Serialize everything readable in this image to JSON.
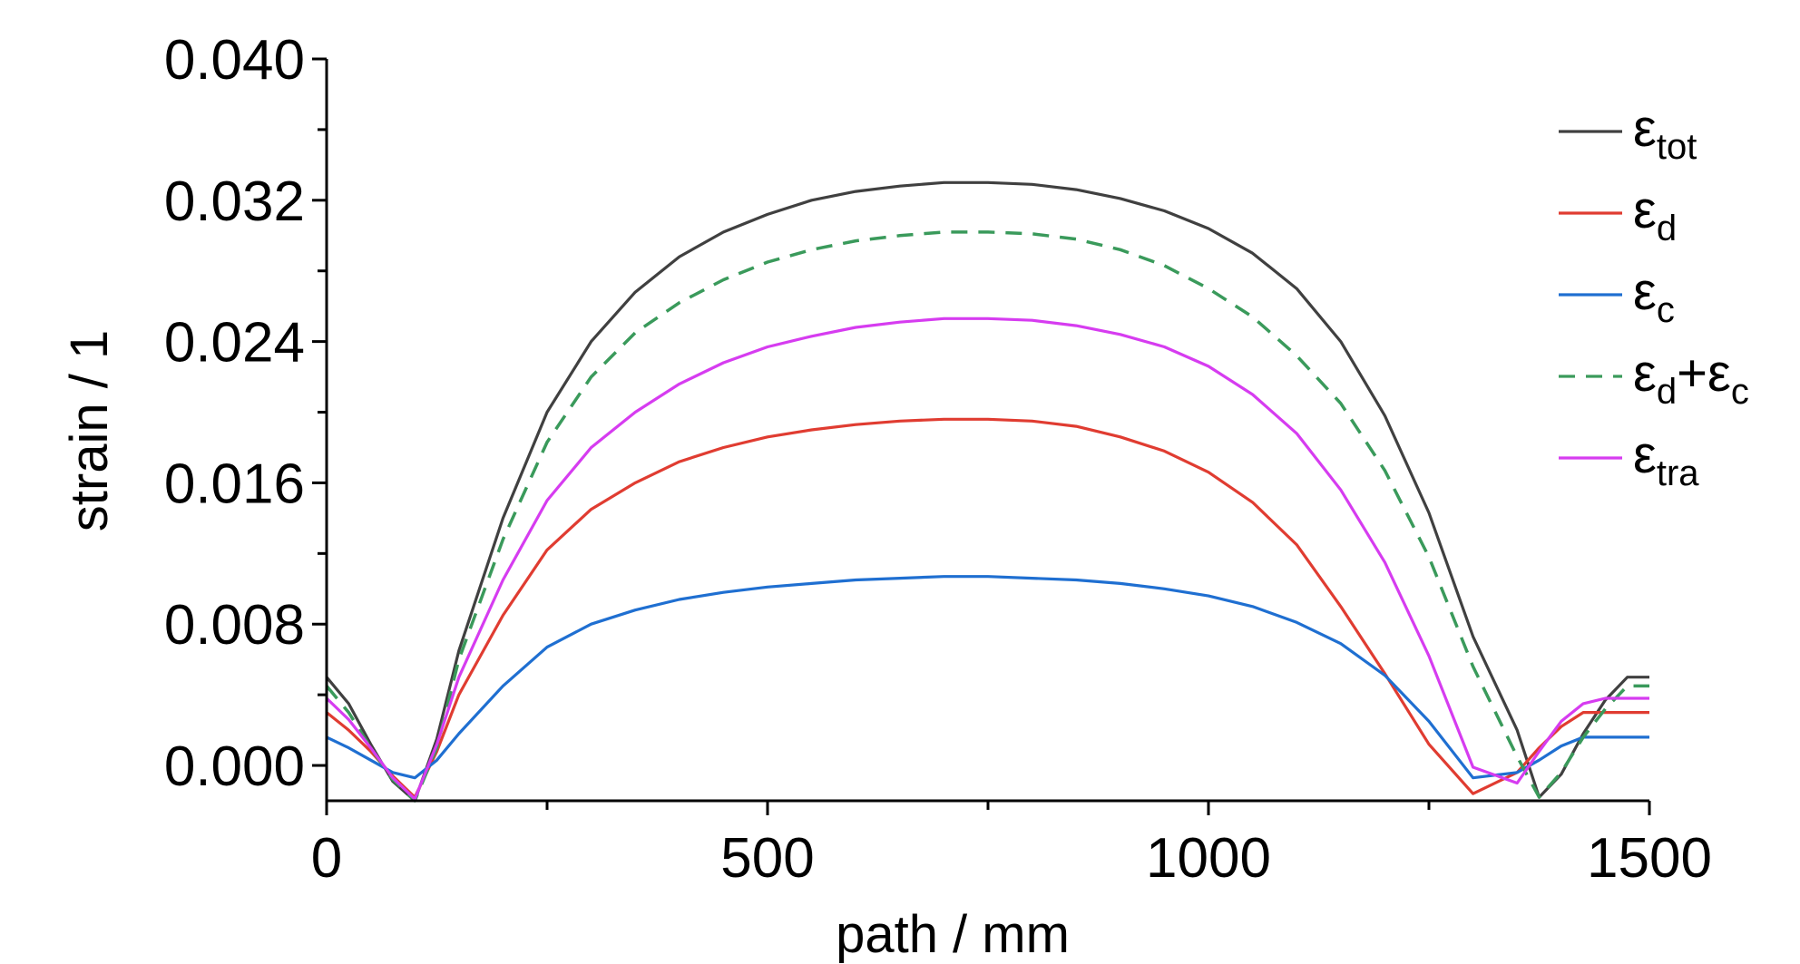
{
  "chart_data": {
    "type": "line",
    "xlabel": "path / mm",
    "ylabel": "strain / 1",
    "xlim": [
      0,
      1500
    ],
    "ylim": [
      -0.002,
      0.04
    ],
    "x_ticks": [
      {
        "value": 0,
        "label": "0"
      },
      {
        "value": 500,
        "label": "500"
      },
      {
        "value": 1000,
        "label": "1000"
      },
      {
        "value": 1500,
        "label": "1500"
      }
    ],
    "y_ticks": [
      {
        "value": 0.0,
        "label": "0.000"
      },
      {
        "value": 0.008,
        "label": "0.008"
      },
      {
        "value": 0.016,
        "label": "0.016"
      },
      {
        "value": 0.024,
        "label": "0.024"
      },
      {
        "value": 0.032,
        "label": "0.032"
      },
      {
        "value": 0.04,
        "label": "0.040"
      }
    ],
    "x_minor_step": 250,
    "y_minor_step": 0.004,
    "grid": false,
    "legend_position": "top-right",
    "x": [
      0,
      25,
      50,
      75,
      100,
      125,
      150,
      200,
      250,
      300,
      350,
      400,
      450,
      500,
      550,
      600,
      650,
      700,
      750,
      800,
      850,
      900,
      950,
      1000,
      1050,
      1100,
      1150,
      1200,
      1250,
      1300,
      1350,
      1375,
      1400,
      1425,
      1450,
      1475,
      1500
    ],
    "series": [
      {
        "name": "ε",
        "sub": "tot",
        "plus_name": "",
        "plus_sub": "",
        "color": "#404040",
        "dashed": false,
        "values": [
          0.005,
          0.0035,
          0.0012,
          -0.0009,
          -0.002,
          0.0015,
          0.0065,
          0.014,
          0.02,
          0.024,
          0.0268,
          0.0288,
          0.0302,
          0.0312,
          0.032,
          0.0325,
          0.0328,
          0.033,
          0.033,
          0.0329,
          0.0326,
          0.0321,
          0.0314,
          0.0304,
          0.029,
          0.027,
          0.024,
          0.0198,
          0.0143,
          0.0073,
          0.002,
          -0.0018,
          -0.0005,
          0.0018,
          0.0037,
          0.005,
          0.005
        ]
      },
      {
        "name": "ε",
        "sub": "d",
        "plus_name": "",
        "plus_sub": "",
        "color": "#e03c31",
        "dashed": false,
        "values": [
          0.003,
          0.002,
          0.0008,
          -0.0006,
          -0.0018,
          0.0008,
          0.004,
          0.0085,
          0.0122,
          0.0145,
          0.016,
          0.0172,
          0.018,
          0.0186,
          0.019,
          0.0193,
          0.0195,
          0.0196,
          0.0196,
          0.0195,
          0.0192,
          0.0186,
          0.0178,
          0.0166,
          0.0149,
          0.0125,
          0.009,
          0.0052,
          0.0012,
          -0.0016,
          -0.0004,
          0.001,
          0.0022,
          0.003,
          0.003,
          0.003,
          0.003
        ]
      },
      {
        "name": "ε",
        "sub": "c",
        "plus_name": "",
        "plus_sub": "",
        "color": "#1f6fd1",
        "dashed": false,
        "values": [
          0.0016,
          0.001,
          0.0003,
          -0.0004,
          -0.0007,
          0.0003,
          0.0018,
          0.0045,
          0.0067,
          0.008,
          0.0088,
          0.0094,
          0.0098,
          0.0101,
          0.0103,
          0.0105,
          0.0106,
          0.0107,
          0.0107,
          0.0106,
          0.0105,
          0.0103,
          0.01,
          0.0096,
          0.009,
          0.0081,
          0.0069,
          0.0051,
          0.0025,
          -0.0007,
          -0.0004,
          0.0003,
          0.0011,
          0.0016,
          0.0016,
          0.0016,
          0.0016
        ]
      },
      {
        "name": "ε",
        "sub": "d",
        "plus_name": "ε",
        "plus_sub": "c",
        "color": "#3a9a5b",
        "dashed": true,
        "values": [
          0.0045,
          0.003,
          0.001,
          -0.0008,
          -0.002,
          0.001,
          0.006,
          0.0128,
          0.0183,
          0.022,
          0.0245,
          0.0262,
          0.0275,
          0.0285,
          0.0292,
          0.0297,
          0.03,
          0.0302,
          0.0302,
          0.0301,
          0.0298,
          0.0292,
          0.0283,
          0.027,
          0.0254,
          0.0232,
          0.0205,
          0.0167,
          0.0118,
          0.0056,
          0.0005,
          -0.0018,
          -0.0004,
          0.0016,
          0.0032,
          0.0045,
          0.0045
        ]
      },
      {
        "name": "ε",
        "sub": "tra",
        "plus_name": "",
        "plus_sub": "",
        "color": "#d63cf0",
        "dashed": false,
        "values": [
          0.0038,
          0.0026,
          0.001,
          -0.0007,
          -0.0019,
          0.0012,
          0.005,
          0.0105,
          0.015,
          0.018,
          0.02,
          0.0216,
          0.0228,
          0.0237,
          0.0243,
          0.0248,
          0.0251,
          0.0253,
          0.0253,
          0.0252,
          0.0249,
          0.0244,
          0.0237,
          0.0226,
          0.021,
          0.0188,
          0.0156,
          0.0115,
          0.0062,
          -0.0001,
          -0.001,
          0.0008,
          0.0025,
          0.0035,
          0.0038,
          0.0038,
          0.0038
        ]
      }
    ]
  }
}
